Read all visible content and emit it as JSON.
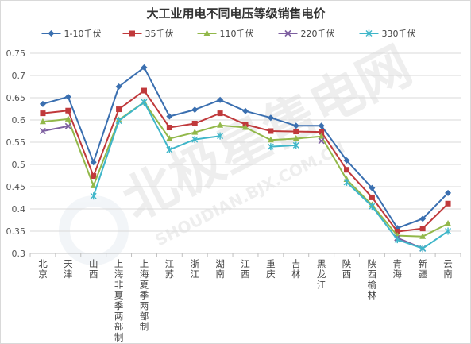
{
  "chart_data": {
    "type": "line",
    "title": "大工业用电不同电压等级销售电价",
    "xlabel": "",
    "ylabel": "",
    "ylim": [
      0.3,
      0.75
    ],
    "yticks": [
      "0.3",
      "0.35",
      "0.4",
      "0.45",
      "0.5",
      "0.55",
      "0.6",
      "0.65",
      "0.7",
      "0.75"
    ],
    "grid": "horizontal",
    "legend": "top",
    "categories": [
      "北京",
      "天津",
      "山西",
      "上海非夏季两部制",
      "上海夏季两部制",
      "江苏",
      "浙江",
      "湖南",
      "江西",
      "重庆",
      "吉林",
      "黑龙江",
      "陕西",
      "陕西榆林",
      "青海",
      "新疆",
      "云南"
    ],
    "series": [
      {
        "name": "1-10千伏",
        "color": "#3a6fb0",
        "marker": "diamond",
        "values": [
          0.636,
          0.652,
          0.505,
          0.675,
          0.718,
          0.608,
          0.623,
          0.645,
          0.62,
          0.605,
          0.587,
          0.587,
          0.509,
          0.447,
          0.357,
          0.378,
          0.436
        ]
      },
      {
        "name": "35千伏",
        "color": "#c0393b",
        "marker": "square",
        "values": [
          0.615,
          0.621,
          0.474,
          0.624,
          0.666,
          0.583,
          0.592,
          0.615,
          0.59,
          0.575,
          0.574,
          0.573,
          0.488,
          0.426,
          0.349,
          0.356,
          0.412
        ]
      },
      {
        "name": "110千伏",
        "color": "#92b84a",
        "marker": "triangle",
        "values": [
          0.596,
          0.602,
          0.452,
          0.6,
          0.64,
          0.558,
          0.572,
          0.588,
          0.583,
          0.555,
          0.558,
          0.563,
          0.466,
          0.409,
          0.34,
          0.338,
          0.367
        ]
      },
      {
        "name": "220千伏",
        "color": "#7d5fa0",
        "marker": "x",
        "values": [
          0.575,
          0.586,
          null,
          null,
          null,
          null,
          null,
          null,
          null,
          null,
          null,
          0.553,
          null,
          null,
          0.335,
          0.311,
          null
        ]
      },
      {
        "name": "330千伏",
        "color": "#3fb6c9",
        "marker": "star",
        "values": [
          null,
          null,
          0.429,
          0.598,
          0.64,
          0.533,
          0.556,
          0.564,
          null,
          0.54,
          0.543,
          null,
          0.46,
          0.406,
          0.331,
          0.311,
          0.35
        ]
      }
    ]
  },
  "watermark": {
    "text_main": "北极星售电网",
    "text_sub": "SHOUDIAN.BJX.COM.CN"
  }
}
